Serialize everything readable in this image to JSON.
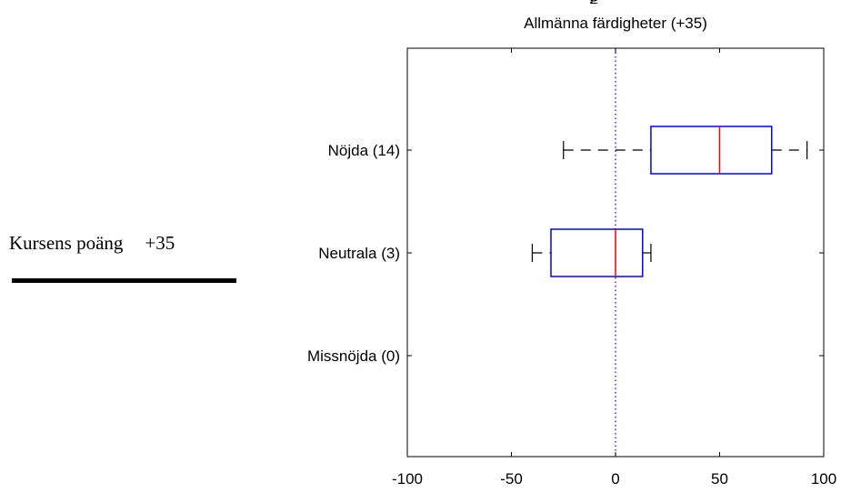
{
  "side_panel": {
    "label": "Kursens poäng",
    "score": "+35"
  },
  "chart_data": {
    "type": "box",
    "title_fragment": "g",
    "subtitle": "Allmänna färdigheter (+35)",
    "xlabel": "",
    "ylabel": "",
    "xlim": [
      -100,
      100
    ],
    "xticks": [
      -100,
      -50,
      0,
      50,
      100
    ],
    "reference_line": {
      "x": 0,
      "style": "dotted",
      "color": "#0000ff"
    },
    "categories": [
      "Nöjda (14)",
      "Neutrala (3)",
      "Missnöjda (0)"
    ],
    "boxes": [
      {
        "category": "Nöjda (14)",
        "whisker_low": -25,
        "q1": 17,
        "median": 50,
        "q3": 75,
        "whisker_high": 92
      },
      {
        "category": "Neutrala (3)",
        "whisker_low": -40,
        "q1": -31,
        "median": 0,
        "q3": 13,
        "whisker_high": 17
      },
      {
        "category": "Missnöjda (0)"
      }
    ],
    "colors": {
      "box": "#0000ff",
      "median": "#ff0000",
      "whisker": "#000000"
    },
    "grid": false,
    "legend": "none"
  }
}
